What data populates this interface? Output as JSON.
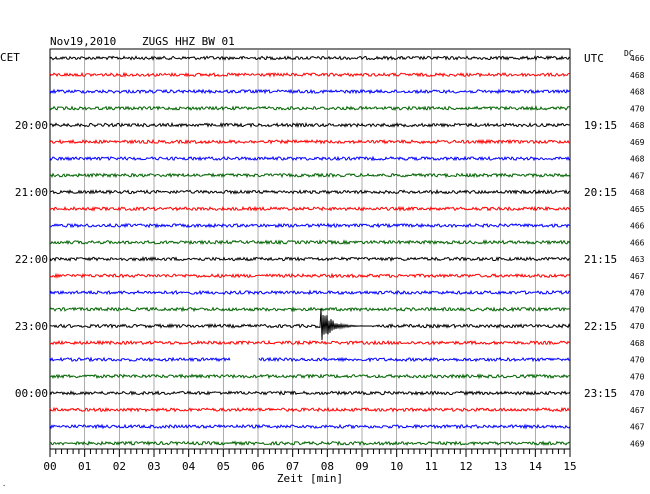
{
  "header": {
    "date": "Nov19,2010",
    "station": "ZUGS HHZ BW 01",
    "left_zone": "CET",
    "right_zone": "UTC",
    "dc_label": "DC"
  },
  "chart_data": {
    "type": "line",
    "title": "Nov19,2010   ZUGS HHZ BW 01",
    "xlabel": "Zeit [min]",
    "xlim": [
      0,
      15
    ],
    "x_ticks": [
      "00",
      "01",
      "02",
      "03",
      "04",
      "05",
      "06",
      "07",
      "08",
      "09",
      "10",
      "11",
      "12",
      "13",
      "14",
      "15"
    ],
    "grid": true,
    "trace_colors": [
      "#000000",
      "#ff0000",
      "#0000ff",
      "#006400"
    ],
    "left_time_labels": [
      {
        "trace": 4,
        "label": "20:00"
      },
      {
        "trace": 8,
        "label": "21:00"
      },
      {
        "trace": 12,
        "label": "22:00"
      },
      {
        "trace": 16,
        "label": "23:00"
      },
      {
        "trace": 20,
        "label": "00:00"
      }
    ],
    "right_time_labels": [
      {
        "trace": 0,
        "label": "UTC"
      },
      {
        "trace": 4,
        "label": "19:15"
      },
      {
        "trace": 8,
        "label": "20:15"
      },
      {
        "trace": 12,
        "label": "21:15"
      },
      {
        "trace": 16,
        "label": "22:15"
      },
      {
        "trace": 20,
        "label": "23:15"
      }
    ],
    "dc_offsets": [
      "466",
      "468",
      "468",
      "470",
      "468",
      "469",
      "468",
      "467",
      "468",
      "465",
      "466",
      "466",
      "463",
      "467",
      "470",
      "470",
      "470",
      "468",
      "470",
      "470",
      "470",
      "467",
      "467",
      "469"
    ],
    "event": {
      "trace": 16,
      "start_min": 7.8,
      "duration_min": 1.5
    },
    "data_gap": {
      "trace": 18,
      "start_min": 5.2,
      "end_min": 6.0
    }
  }
}
